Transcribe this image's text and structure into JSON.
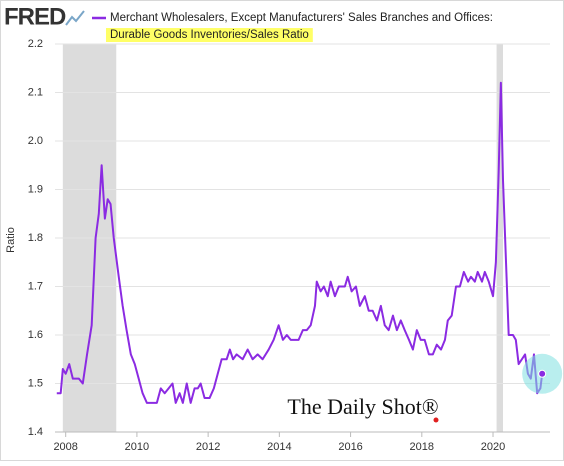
{
  "chart_data": {
    "type": "line",
    "logo": "FRED",
    "title": "Merchant Wholesalers, Except Manufacturers' Sales Branches and Offices:",
    "subtitle": "Durable Goods Inventories/Sales Ratio",
    "y_label": "Ratio",
    "watermark": "The Daily Shot®",
    "xlim": [
      2007.7,
      2021.6
    ],
    "xticks": [
      2008,
      2010,
      2012,
      2014,
      2016,
      2018,
      2020
    ],
    "ylim": [
      1.4,
      2.2
    ],
    "yticks": [
      1.4,
      1.5,
      1.6,
      1.7,
      1.8,
      1.9,
      {
        "value": 2,
        "label": "2.0"
      },
      2.1,
      2.2
    ],
    "grid": true,
    "shaded_periods": [
      [
        2007.92,
        2009.42
      ],
      [
        2020.1,
        2020.28
      ]
    ],
    "x": [
      2007.75,
      2007.86,
      2007.92,
      2008.0,
      2008.1,
      2008.2,
      2008.37,
      2008.48,
      2008.6,
      2008.73,
      2008.84,
      2008.93,
      2009.01,
      2009.1,
      2009.18,
      2009.26,
      2009.35,
      2009.49,
      2009.6,
      2009.71,
      2009.83,
      2009.94,
      2010.05,
      2010.16,
      2010.28,
      2010.39,
      2010.56,
      2010.67,
      2010.78,
      2010.89,
      2011.0,
      2011.09,
      2011.2,
      2011.29,
      2011.4,
      2011.51,
      2011.62,
      2011.71,
      2011.79,
      2011.9,
      2012.04,
      2012.16,
      2012.27,
      2012.38,
      2012.52,
      2012.61,
      2012.7,
      2012.8,
      2012.97,
      2013.11,
      2013.25,
      2013.39,
      2013.53,
      2013.7,
      2013.84,
      2013.98,
      2014.1,
      2014.21,
      2014.32,
      2014.43,
      2014.54,
      2014.66,
      2014.77,
      2014.88,
      2015.0,
      2015.05,
      2015.16,
      2015.25,
      2015.36,
      2015.44,
      2015.56,
      2015.67,
      2015.84,
      2015.92,
      2016.03,
      2016.15,
      2016.26,
      2016.4,
      2016.51,
      2016.62,
      2016.74,
      2016.85,
      2016.96,
      2017.07,
      2017.19,
      2017.3,
      2017.41,
      2017.52,
      2017.64,
      2017.75,
      2017.86,
      2017.97,
      2018.08,
      2018.2,
      2018.31,
      2018.42,
      2018.54,
      2018.65,
      2018.73,
      2018.84,
      2018.96,
      2019.07,
      2019.18,
      2019.3,
      2019.38,
      2019.49,
      2019.57,
      2019.69,
      2019.77,
      2019.88,
      2020.0,
      2020.08,
      2020.16,
      2020.22,
      2020.28,
      2020.36,
      2020.44,
      2020.56,
      2020.64,
      2020.72,
      2020.81,
      2020.9,
      2020.98,
      2021.06,
      2021.15,
      2021.24,
      2021.33,
      2021.38
    ],
    "series": [
      {
        "name": "Merchant Wholesalers, Except Manufacturers' Sales Branches and Offices:",
        "color": "#8b2be2",
        "values": [
          1.48,
          1.48,
          1.53,
          1.52,
          1.54,
          1.51,
          1.51,
          1.5,
          1.56,
          1.62,
          1.8,
          1.85,
          1.95,
          1.84,
          1.88,
          1.87,
          1.8,
          1.72,
          1.66,
          1.61,
          1.56,
          1.54,
          1.51,
          1.48,
          1.46,
          1.46,
          1.46,
          1.49,
          1.48,
          1.49,
          1.5,
          1.46,
          1.48,
          1.46,
          1.5,
          1.46,
          1.49,
          1.49,
          1.5,
          1.47,
          1.47,
          1.49,
          1.52,
          1.55,
          1.55,
          1.57,
          1.55,
          1.56,
          1.55,
          1.57,
          1.55,
          1.56,
          1.55,
          1.57,
          1.59,
          1.62,
          1.59,
          1.6,
          1.59,
          1.59,
          1.59,
          1.61,
          1.61,
          1.62,
          1.66,
          1.71,
          1.69,
          1.7,
          1.68,
          1.71,
          1.68,
          1.7,
          1.7,
          1.72,
          1.69,
          1.7,
          1.66,
          1.68,
          1.65,
          1.65,
          1.63,
          1.66,
          1.62,
          1.61,
          1.64,
          1.61,
          1.63,
          1.61,
          1.59,
          1.57,
          1.61,
          1.59,
          1.59,
          1.56,
          1.56,
          1.58,
          1.57,
          1.59,
          1.63,
          1.64,
          1.7,
          1.7,
          1.73,
          1.71,
          1.72,
          1.71,
          1.73,
          1.71,
          1.73,
          1.71,
          1.68,
          1.75,
          1.94,
          2.12,
          1.92,
          1.76,
          1.6,
          1.6,
          1.59,
          1.54,
          1.55,
          1.56,
          1.52,
          1.51,
          1.56,
          1.48,
          1.49,
          1.52
        ]
      }
    ]
  }
}
